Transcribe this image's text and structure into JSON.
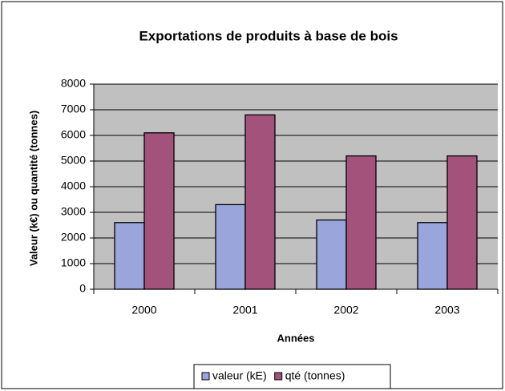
{
  "chart_data": {
    "type": "bar",
    "title": "Exportations de produits à base de bois",
    "x_label": "Années",
    "y_label": "Valeur (k€) ou quantité (tonnes)",
    "categories": [
      "2000",
      "2001",
      "2002",
      "2003"
    ],
    "series": [
      {
        "name": "valeur (kE)",
        "color": "#9aa5dc",
        "values": [
          2600,
          3300,
          2700,
          2600
        ]
      },
      {
        "name": "qté (tonnes)",
        "color": "#a3527c",
        "values": [
          6100,
          6800,
          5200,
          5200
        ]
      }
    ],
    "ylim": [
      0,
      8000
    ],
    "yticks": [
      0,
      1000,
      2000,
      3000,
      4000,
      5000,
      6000,
      7000,
      8000
    ],
    "grid": true,
    "legend": "bottom"
  }
}
